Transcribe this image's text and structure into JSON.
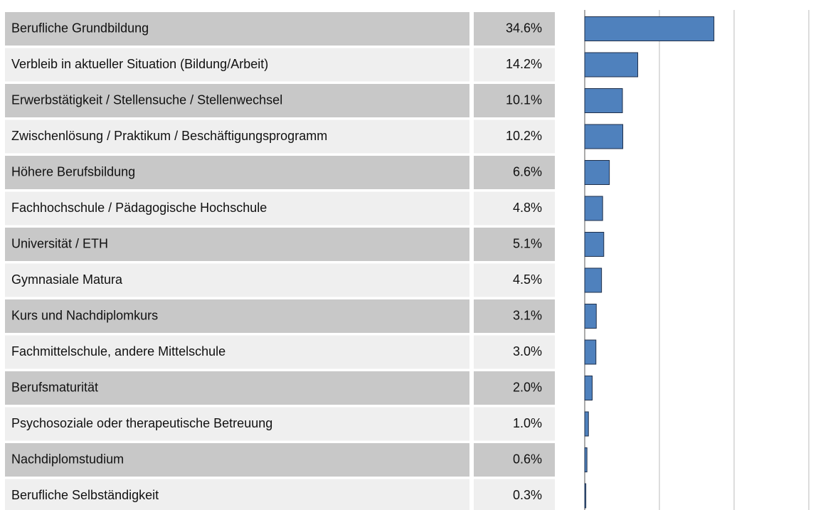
{
  "chart_data": {
    "type": "bar",
    "orientation": "horizontal",
    "categories": [
      "Berufliche Grundbildung",
      "Verbleib in aktueller Situation (Bildung/Arbeit)",
      "Erwerbstätigkeit / Stellensuche / Stellenwechsel",
      "Zwischenlösung / Praktikum / Beschäftigungsprogramm",
      "Höhere Berufsbildung",
      "Fachhochschule / Pädagogische Hochschule",
      "Universität / ETH",
      "Gymnasiale Matura",
      "Kurs und Nachdiplomkurs",
      "Fachmittelschule, andere Mittelschule",
      "Berufsmaturität",
      "Psychosoziale oder therapeutische Betreuung",
      "Nachdiplomstudium",
      "Berufliche Selbständigkeit"
    ],
    "values": [
      34.6,
      14.2,
      10.1,
      10.2,
      6.6,
      4.8,
      5.1,
      4.5,
      3.1,
      3.0,
      2.0,
      1.0,
      0.6,
      0.3
    ],
    "value_labels": [
      "34.6%",
      "14.2%",
      "10.1%",
      "10.2%",
      "6.6%",
      "4.8%",
      "5.1%",
      "4.5%",
      "3.1%",
      "3.0%",
      "2.0%",
      "1.0%",
      "0.6%",
      "0.3%"
    ],
    "color": "#4f81bd",
    "xlim": [
      0,
      60
    ],
    "xticks": [
      0,
      20,
      40,
      60
    ],
    "grid": true
  }
}
